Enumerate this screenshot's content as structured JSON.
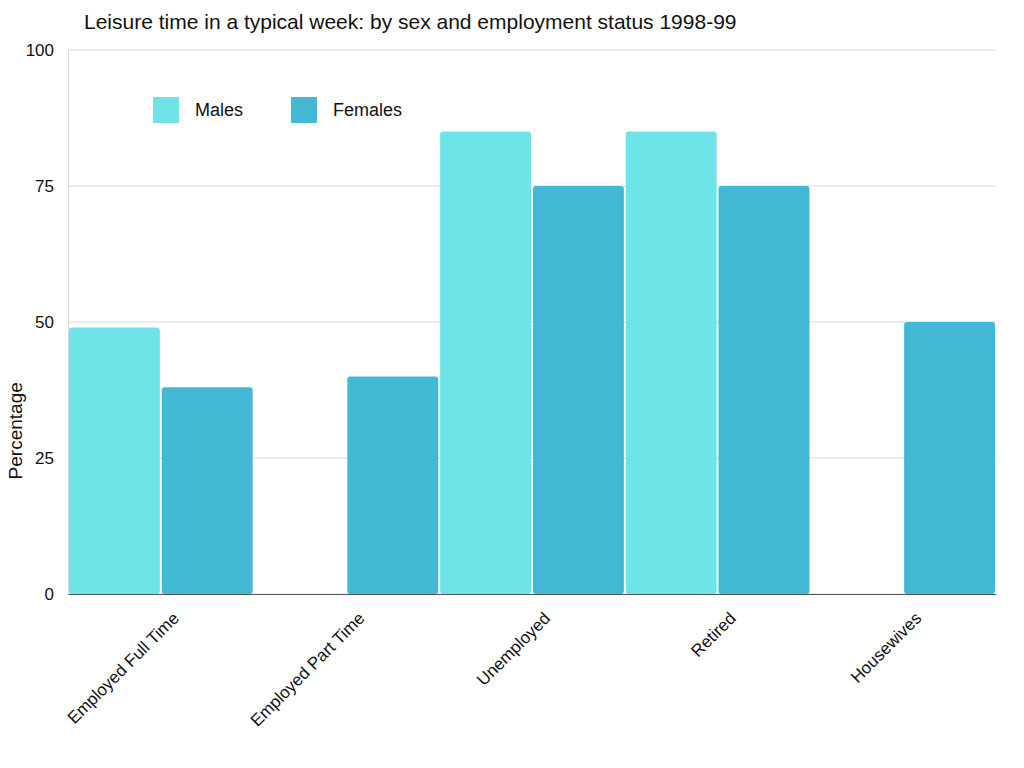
{
  "chart_data": {
    "type": "bar",
    "title": "Leisure time in a typical week: by sex and employment status 1998-99",
    "y_label": "Percentage",
    "categories": [
      "Employed Full Time",
      "Employed Part Time",
      "Unemployed",
      "Retired",
      "Housewives"
    ],
    "series": [
      {
        "name": "Males",
        "color": "#6ee3e8",
        "values": [
          49,
          null,
          85,
          85,
          null
        ]
      },
      {
        "name": "Females",
        "color": "#43b8d4",
        "values": [
          38,
          40,
          75,
          75,
          50
        ]
      }
    ],
    "ylim": [
      0,
      100
    ],
    "yticks": [
      0,
      25,
      50,
      75,
      100
    ],
    "grid": true,
    "legend": "top-left"
  }
}
